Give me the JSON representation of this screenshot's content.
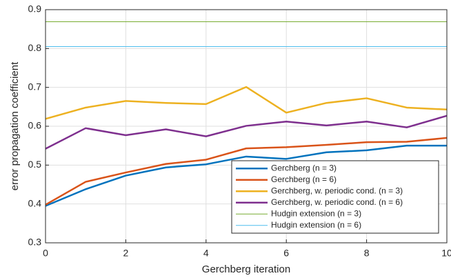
{
  "chart_data": {
    "type": "line",
    "x_label": "Gerchberg iteration",
    "y_label": "error propagation coefficient",
    "x": [
      0,
      1,
      2,
      3,
      4,
      5,
      6,
      7,
      8,
      9,
      10
    ],
    "series": [
      {
        "name": "Gerchberg (n = 3)",
        "color": "#0072bd",
        "line_width": 2.5,
        "values": [
          0.395,
          0.438,
          0.473,
          0.494,
          0.502,
          0.522,
          0.516,
          0.533,
          0.538,
          0.55,
          0.55
        ]
      },
      {
        "name": "Gerchberg (n = 6)",
        "color": "#d95319",
        "line_width": 2.5,
        "values": [
          0.398,
          0.457,
          0.481,
          0.503,
          0.514,
          0.543,
          0.546,
          0.552,
          0.559,
          0.56,
          0.57
        ]
      },
      {
        "name": "Gerchberg, w. periodic cond. (n = 3)",
        "color": "#edb120",
        "line_width": 2.5,
        "values": [
          0.619,
          0.648,
          0.665,
          0.66,
          0.657,
          0.701,
          0.635,
          0.66,
          0.672,
          0.648,
          0.643
        ]
      },
      {
        "name": "Gerchberg, w. periodic cond. (n = 6)",
        "color": "#7e2f8e",
        "line_width": 2.5,
        "values": [
          0.542,
          0.595,
          0.577,
          0.592,
          0.574,
          0.601,
          0.612,
          0.602,
          0.612,
          0.597,
          0.627
        ]
      },
      {
        "name": "Hudgin extension (n = 3)",
        "color": "#77ac30",
        "line_width": 1,
        "values": [
          0.869,
          0.869,
          0.869,
          0.869,
          0.869,
          0.869,
          0.869,
          0.869,
          0.869,
          0.869,
          0.869
        ]
      },
      {
        "name": "Hudgin extension (n = 6)",
        "color": "#4dbeee",
        "line_width": 1,
        "values": [
          0.805,
          0.805,
          0.805,
          0.805,
          0.805,
          0.805,
          0.805,
          0.805,
          0.805,
          0.805,
          0.805
        ]
      }
    ],
    "xlim": [
      0,
      10
    ],
    "xticks": [
      0,
      2,
      4,
      6,
      8,
      10
    ],
    "ylim": [
      0.3,
      0.9
    ],
    "yticks": [
      0.3,
      0.4,
      0.5,
      0.6,
      0.7,
      0.8,
      0.9
    ],
    "grid": true,
    "legend": "lower right"
  }
}
